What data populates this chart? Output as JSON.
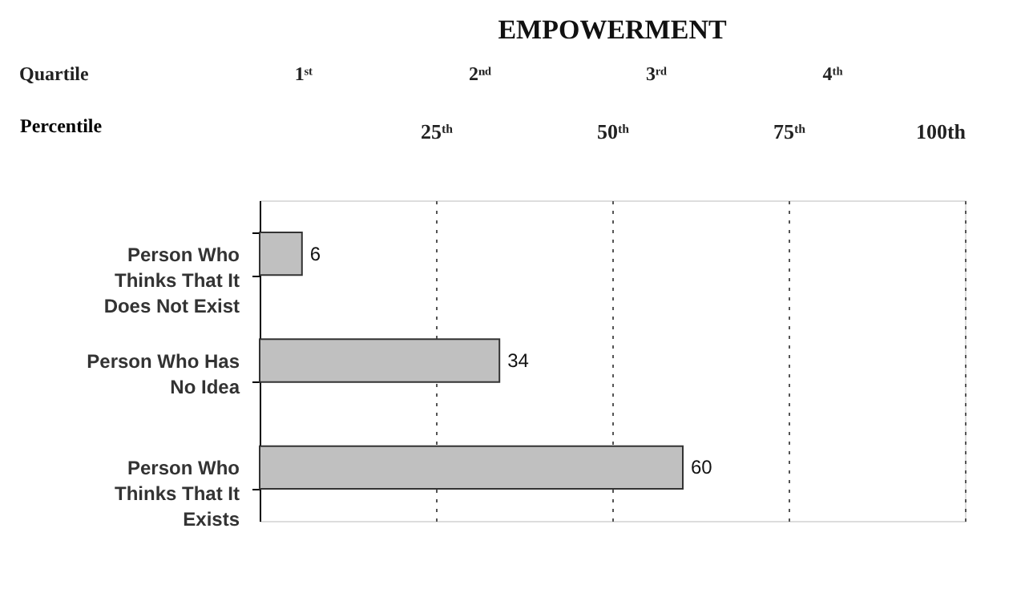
{
  "chart_data": {
    "type": "bar",
    "orientation": "horizontal",
    "title": "EMPOWERMENT",
    "categories": [
      "Person Who Thinks That It Does Not Exist",
      "Person Who Has No Idea",
      "Person Who Thinks That It Exists"
    ],
    "values": [
      6,
      34,
      60
    ],
    "color": "#c0c0c0",
    "data_labels": true,
    "xlim": [
      0,
      100
    ],
    "xlabel": "Percentile",
    "xticks": [
      {
        "value": 25,
        "label": "25ᵗʰ"
      },
      {
        "value": 50,
        "label": "50ᵗʰ"
      },
      {
        "value": 75,
        "label": "75ᵗʰ"
      },
      {
        "value": 100,
        "label": "100th"
      }
    ],
    "annotations": [
      "Quartile",
      "1ˢᵗ",
      "2ⁿᵈ",
      "3ʳᵈ",
      "4ᵗʰ"
    ],
    "grid": "x"
  }
}
